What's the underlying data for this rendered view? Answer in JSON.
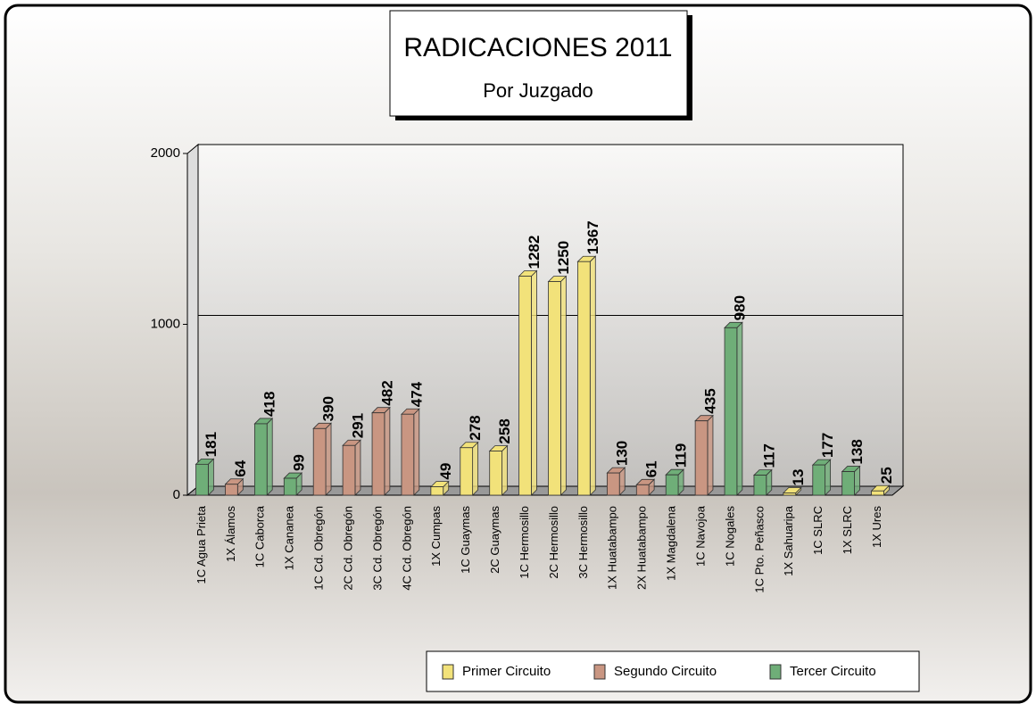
{
  "chart_data": {
    "type": "bar",
    "title": "RADICACIONES 2011",
    "subtitle": "Por Juzgado",
    "categories": [
      "1C Agua Prieta",
      "1X Álamos",
      "1C Caborca",
      "1X Cananea",
      "1C Cd. Obregón",
      "2C Cd. Obregón",
      "3C Cd. Obregón",
      "4C Cd. Obregón",
      "1X Cumpas",
      "1C Guaymas",
      "2C Guaymas",
      "1C Hermosillo",
      "2C Hermosillo",
      "3C Hermosillo",
      "1X Huatabampo",
      "2X Huatabampo",
      "1X Magdalena",
      "1C Navojoa",
      "1C Nogales",
      "1C Pto. Peñasco",
      "1X Sahuaripa",
      "1C SLRC",
      "1X SLRC",
      "1X Ures"
    ],
    "series": [
      {
        "name": "Primer Circuito",
        "color": "#f2e27a",
        "values": [
          null,
          null,
          null,
          null,
          null,
          null,
          null,
          null,
          49,
          278,
          258,
          1282,
          1250,
          1367,
          null,
          null,
          null,
          null,
          null,
          null,
          13,
          null,
          null,
          25
        ]
      },
      {
        "name": "Segundo Circuito",
        "color": "#c99682",
        "values": [
          null,
          64,
          null,
          null,
          390,
          291,
          482,
          474,
          null,
          null,
          null,
          null,
          null,
          null,
          130,
          61,
          null,
          435,
          null,
          null,
          null,
          null,
          null,
          null
        ]
      },
      {
        "name": "Tercer Circuito",
        "color": "#6fae78",
        "values": [
          181,
          null,
          418,
          99,
          null,
          null,
          null,
          null,
          null,
          null,
          null,
          null,
          null,
          null,
          null,
          null,
          119,
          null,
          980,
          117,
          null,
          177,
          138,
          null
        ]
      }
    ],
    "ylim": [
      0,
      2000
    ],
    "yticks": [
      0,
      1000,
      2000
    ],
    "grid": true,
    "legend": "bottom-right"
  }
}
